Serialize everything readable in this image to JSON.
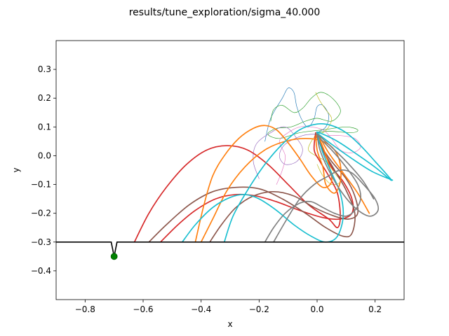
{
  "chart_data": {
    "type": "line",
    "title": "results/tune_exploration/sigma_40.000",
    "xlabel": "x",
    "ylabel": "y",
    "xlim": [
      -0.9,
      0.3
    ],
    "ylim": [
      -0.5,
      0.4
    ],
    "grid": false,
    "xticks": [
      -0.8,
      -0.6,
      -0.4,
      -0.2,
      0.0,
      0.2
    ],
    "xtick_labels": [
      "−0.8",
      "−0.6",
      "−0.4",
      "−0.2",
      "0.0",
      "0.2"
    ],
    "yticks": [
      -0.4,
      -0.3,
      -0.2,
      -0.1,
      0.0,
      0.1,
      0.2,
      0.3
    ],
    "ytick_labels": [
      "−0.4",
      "−0.3",
      "−0.2",
      "−0.1",
      "0.0",
      "0.1",
      "0.2",
      "0.3"
    ],
    "ground": {
      "color": "#000000",
      "points": [
        [
          -0.9,
          -0.3
        ],
        [
          -0.71,
          -0.3
        ],
        [
          -0.705,
          -0.325
        ],
        [
          -0.7,
          -0.35
        ],
        [
          -0.695,
          -0.325
        ],
        [
          -0.69,
          -0.3
        ],
        [
          0.3,
          -0.3
        ]
      ]
    },
    "target": {
      "x": -0.7,
      "y": -0.35,
      "color": "#008000"
    },
    "series": [
      {
        "color": "#d62728",
        "width": 1.5,
        "points": [
          [
            -0.63,
            -0.3
          ],
          [
            -0.58,
            -0.2
          ],
          [
            -0.52,
            -0.11
          ],
          [
            -0.45,
            -0.03
          ],
          [
            -0.38,
            0.02
          ],
          [
            -0.31,
            0.035
          ],
          [
            -0.24,
            0.02
          ],
          [
            -0.17,
            -0.03
          ],
          [
            -0.1,
            -0.1
          ],
          [
            -0.03,
            -0.17
          ],
          [
            0.04,
            -0.22
          ],
          [
            0.07,
            -0.25
          ],
          [
            0.08,
            -0.21
          ],
          [
            0.07,
            -0.13
          ],
          [
            0.04,
            -0.07
          ],
          [
            0.01,
            -0.02
          ],
          [
            -0.01,
            0.02
          ],
          [
            -0.005,
            0.08
          ]
        ]
      },
      {
        "color": "#d62728",
        "width": 1.5,
        "points": [
          [
            -0.54,
            -0.3
          ],
          [
            -0.48,
            -0.24
          ],
          [
            -0.42,
            -0.19
          ],
          [
            -0.35,
            -0.15
          ],
          [
            -0.28,
            -0.135
          ],
          [
            -0.21,
            -0.14
          ],
          [
            -0.14,
            -0.16
          ],
          [
            -0.06,
            -0.19
          ],
          [
            0.02,
            -0.215
          ],
          [
            0.08,
            -0.22
          ],
          [
            0.12,
            -0.2
          ],
          [
            0.12,
            -0.15
          ],
          [
            0.09,
            -0.09
          ],
          [
            0.05,
            -0.04
          ],
          [
            0.02,
            0.02
          ],
          [
            0.0,
            0.075
          ]
        ]
      },
      {
        "color": "#8c564b",
        "width": 1.5,
        "points": [
          [
            -0.58,
            -0.3
          ],
          [
            -0.52,
            -0.24
          ],
          [
            -0.44,
            -0.17
          ],
          [
            -0.36,
            -0.125
          ],
          [
            -0.28,
            -0.11
          ],
          [
            -0.2,
            -0.115
          ],
          [
            -0.12,
            -0.15
          ],
          [
            -0.04,
            -0.2
          ],
          [
            0.03,
            -0.25
          ],
          [
            0.09,
            -0.28
          ],
          [
            0.12,
            -0.27
          ],
          [
            0.13,
            -0.2
          ],
          [
            0.1,
            -0.12
          ],
          [
            0.06,
            -0.05
          ],
          [
            0.02,
            0.02
          ],
          [
            -0.005,
            0.075
          ]
        ]
      },
      {
        "color": "#8c564b",
        "width": 1.5,
        "points": [
          [
            -0.37,
            -0.3
          ],
          [
            -0.33,
            -0.24
          ],
          [
            -0.28,
            -0.18
          ],
          [
            -0.22,
            -0.14
          ],
          [
            -0.15,
            -0.125
          ],
          [
            -0.08,
            -0.14
          ],
          [
            -0.01,
            -0.18
          ],
          [
            0.06,
            -0.21
          ],
          [
            0.11,
            -0.22
          ],
          [
            0.14,
            -0.2
          ],
          [
            0.13,
            -0.14
          ],
          [
            0.1,
            -0.08
          ],
          [
            0.05,
            -0.02
          ],
          [
            0.01,
            0.04
          ],
          [
            0.0,
            0.075
          ]
        ]
      },
      {
        "color": "#ff7f0e",
        "width": 1.5,
        "points": [
          [
            -0.42,
            -0.3
          ],
          [
            -0.39,
            -0.17
          ],
          [
            -0.36,
            -0.07
          ],
          [
            -0.32,
            0.0
          ],
          [
            -0.27,
            0.06
          ],
          [
            -0.22,
            0.095
          ],
          [
            -0.18,
            0.105
          ],
          [
            -0.14,
            0.09
          ],
          [
            -0.1,
            0.045
          ],
          [
            -0.06,
            -0.01
          ],
          [
            -0.02,
            -0.07
          ],
          [
            0.02,
            -0.11
          ],
          [
            0.05,
            -0.09
          ],
          [
            0.04,
            -0.03
          ],
          [
            0.02,
            0.03
          ],
          [
            0.0,
            0.075
          ]
        ]
      },
      {
        "color": "#ff7f0e",
        "width": 1.5,
        "points": [
          [
            -0.4,
            -0.3
          ],
          [
            -0.36,
            -0.22
          ],
          [
            -0.31,
            -0.12
          ],
          [
            -0.25,
            -0.04
          ],
          [
            -0.18,
            0.02
          ],
          [
            -0.11,
            0.05
          ],
          [
            -0.04,
            0.06
          ],
          [
            0.02,
            0.05
          ],
          [
            0.06,
            0.02
          ],
          [
            0.08,
            -0.03
          ],
          [
            0.08,
            -0.09
          ],
          [
            0.06,
            -0.13
          ],
          [
            0.03,
            -0.1
          ],
          [
            0.02,
            -0.04
          ],
          [
            0.0,
            0.02
          ],
          [
            0.0,
            0.075
          ],
          [
            0.04,
            0.01
          ],
          [
            0.09,
            -0.06
          ],
          [
            0.14,
            -0.13
          ],
          [
            0.18,
            -0.2
          ]
        ]
      },
      {
        "color": "#17becf",
        "width": 1.5,
        "points": [
          [
            -0.465,
            -0.3
          ],
          [
            -0.42,
            -0.24
          ],
          [
            -0.36,
            -0.18
          ],
          [
            -0.3,
            -0.145
          ],
          [
            -0.25,
            -0.135
          ],
          [
            -0.2,
            -0.15
          ],
          [
            -0.14,
            -0.19
          ],
          [
            -0.08,
            -0.24
          ],
          [
            -0.02,
            -0.28
          ],
          [
            0.03,
            -0.3
          ],
          [
            0.07,
            -0.28
          ],
          [
            0.09,
            -0.21
          ],
          [
            0.08,
            -0.13
          ],
          [
            0.05,
            -0.06
          ],
          [
            0.02,
            0.01
          ],
          [
            0.0,
            0.075
          ]
        ]
      },
      {
        "color": "#17becf",
        "width": 1.5,
        "points": [
          [
            -0.32,
            -0.3
          ],
          [
            -0.29,
            -0.21
          ],
          [
            -0.24,
            -0.12
          ],
          [
            -0.18,
            -0.03
          ],
          [
            -0.12,
            0.04
          ],
          [
            -0.06,
            0.09
          ],
          [
            0.0,
            0.11
          ],
          [
            0.05,
            0.105
          ],
          [
            0.1,
            0.08
          ],
          [
            0.15,
            0.035
          ],
          [
            0.2,
            -0.02
          ],
          [
            0.24,
            -0.065
          ],
          [
            0.255,
            -0.085
          ],
          [
            0.2,
            -0.04
          ],
          [
            0.13,
            0.01
          ],
          [
            0.07,
            0.05
          ],
          [
            0.02,
            0.075
          ],
          [
            0.0,
            0.08
          ],
          [
            0.05,
            0.04
          ],
          [
            0.12,
            -0.01
          ],
          [
            0.19,
            -0.055
          ],
          [
            0.26,
            -0.085
          ]
        ]
      },
      {
        "color": "#7f7f7f",
        "width": 1.5,
        "points": [
          [
            -0.18,
            -0.3
          ],
          [
            -0.15,
            -0.25
          ],
          [
            -0.11,
            -0.2
          ],
          [
            -0.06,
            -0.165
          ],
          [
            -0.02,
            -0.16
          ],
          [
            0.02,
            -0.18
          ],
          [
            0.06,
            -0.2
          ],
          [
            0.1,
            -0.21
          ],
          [
            0.13,
            -0.19
          ],
          [
            0.15,
            -0.15
          ],
          [
            0.14,
            -0.1
          ],
          [
            0.1,
            -0.04
          ],
          [
            0.05,
            0.02
          ],
          [
            0.01,
            0.06
          ],
          [
            0.0,
            0.075
          ],
          [
            0.05,
            0.03
          ],
          [
            0.11,
            -0.03
          ],
          [
            0.16,
            -0.09
          ],
          [
            0.195,
            -0.15
          ]
        ]
      },
      {
        "color": "#7f7f7f",
        "width": 1.5,
        "points": [
          [
            -0.15,
            -0.3
          ],
          [
            -0.11,
            -0.23
          ],
          [
            -0.06,
            -0.15
          ],
          [
            -0.01,
            -0.1
          ],
          [
            0.04,
            -0.07
          ],
          [
            0.08,
            -0.05
          ],
          [
            0.12,
            -0.06
          ],
          [
            0.16,
            -0.1
          ],
          [
            0.2,
            -0.15
          ],
          [
            0.21,
            -0.19
          ],
          [
            0.18,
            -0.21
          ],
          [
            0.13,
            -0.18
          ],
          [
            0.08,
            -0.12
          ],
          [
            0.04,
            -0.05
          ],
          [
            0.01,
            0.02
          ],
          [
            0.0,
            0.075
          ]
        ]
      },
      {
        "color": "#1f77b4",
        "width": 0.6,
        "points": [
          [
            -0.18,
            0.05
          ],
          [
            -0.16,
            0.13
          ],
          [
            -0.12,
            0.2
          ],
          [
            -0.1,
            0.235
          ],
          [
            -0.08,
            0.22
          ],
          [
            -0.07,
            0.17
          ],
          [
            -0.05,
            0.12
          ],
          [
            -0.03,
            0.1
          ],
          [
            -0.01,
            0.13
          ],
          [
            0.0,
            0.17
          ],
          [
            0.02,
            0.175
          ],
          [
            0.04,
            0.14
          ],
          [
            0.03,
            0.1
          ],
          [
            0.0,
            0.08
          ]
        ]
      },
      {
        "color": "#2ca02c",
        "width": 0.6,
        "points": [
          [
            -0.16,
            0.12
          ],
          [
            -0.15,
            0.16
          ],
          [
            -0.12,
            0.175
          ],
          [
            -0.08,
            0.15
          ],
          [
            -0.05,
            0.165
          ],
          [
            -0.02,
            0.2
          ],
          [
            0.01,
            0.22
          ],
          [
            0.04,
            0.21
          ],
          [
            0.07,
            0.18
          ],
          [
            0.08,
            0.15
          ],
          [
            0.05,
            0.12
          ],
          [
            0.0,
            0.13
          ],
          [
            -0.04,
            0.12
          ],
          [
            -0.09,
            0.1
          ],
          [
            -0.14,
            0.095
          ],
          [
            -0.17,
            0.075
          ],
          [
            -0.13,
            0.06
          ],
          [
            -0.06,
            0.08
          ],
          [
            0.02,
            0.09
          ],
          [
            0.1,
            0.1
          ],
          [
            0.14,
            0.09
          ],
          [
            0.12,
            0.08
          ],
          [
            0.04,
            0.085
          ],
          [
            0.0,
            0.08
          ]
        ]
      },
      {
        "color": "#bcbd22",
        "width": 0.6,
        "points": [
          [
            -0.005,
            0.22
          ],
          [
            0.01,
            0.19
          ],
          [
            0.03,
            0.16
          ],
          [
            0.05,
            0.13
          ],
          [
            0.04,
            0.1
          ],
          [
            0.02,
            0.08
          ],
          [
            0.0,
            0.075
          ],
          [
            -0.02,
            0.05
          ],
          [
            -0.03,
            0.02
          ],
          [
            -0.005,
            0.0
          ],
          [
            0.03,
            -0.02
          ],
          [
            0.06,
            -0.06
          ],
          [
            0.08,
            -0.09
          ],
          [
            0.05,
            -0.1
          ],
          [
            0.02,
            -0.07
          ],
          [
            0.0,
            -0.03
          ]
        ]
      },
      {
        "color": "#e377c2",
        "width": 0.6,
        "points": [
          [
            -0.14,
            -0.1
          ],
          [
            -0.12,
            -0.05
          ],
          [
            -0.11,
            0.0
          ],
          [
            -0.13,
            0.05
          ],
          [
            -0.1,
            0.08
          ],
          [
            -0.06,
            0.1
          ],
          [
            -0.02,
            0.1
          ],
          [
            0.02,
            0.09
          ],
          [
            0.05,
            0.06
          ],
          [
            0.08,
            0.02
          ],
          [
            0.12,
            0.01
          ],
          [
            0.15,
            0.03
          ],
          [
            0.13,
            0.06
          ],
          [
            0.08,
            0.07
          ],
          [
            0.03,
            0.07
          ]
        ]
      },
      {
        "color": "#9467bd",
        "width": 0.6,
        "points": [
          [
            -0.2,
            -0.08
          ],
          [
            -0.22,
            -0.02
          ],
          [
            -0.21,
            0.04
          ],
          [
            -0.16,
            0.08
          ],
          [
            -0.11,
            0.1
          ],
          [
            -0.07,
            0.06
          ],
          [
            -0.05,
            0.02
          ],
          [
            -0.07,
            -0.02
          ],
          [
            -0.11,
            -0.03
          ],
          [
            -0.13,
            0.0
          ],
          [
            -0.11,
            0.04
          ],
          [
            -0.05,
            0.07
          ],
          [
            0.0,
            0.075
          ]
        ]
      }
    ]
  }
}
